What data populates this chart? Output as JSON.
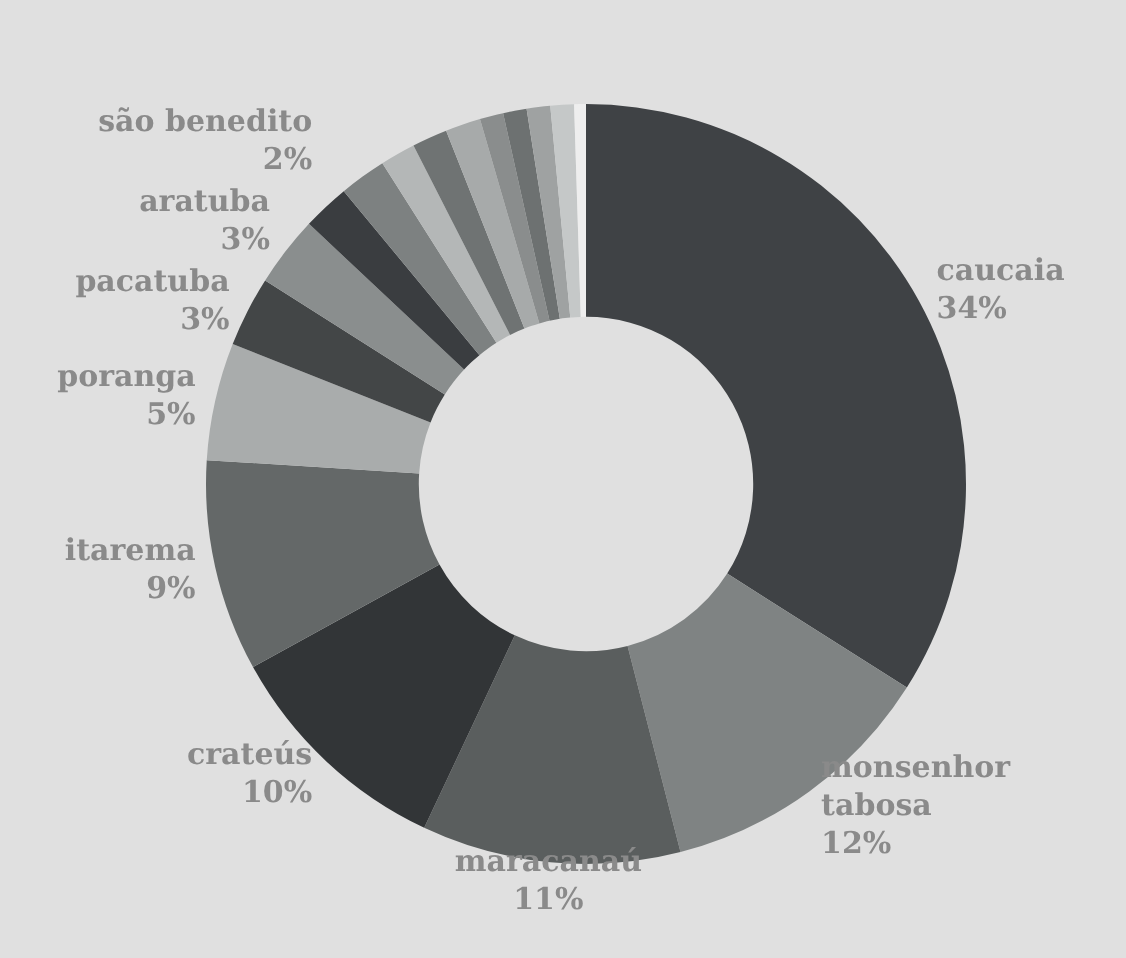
{
  "chart_data": {
    "type": "donut",
    "categories": [
      "caucaia",
      "monsenhor tabosa",
      "maracanaú",
      "crateús",
      "itarema",
      "poranga",
      "pacatuba",
      "aratuba",
      "são benedito",
      null,
      null,
      null,
      null,
      null,
      null,
      null,
      null,
      null
    ],
    "values": [
      34,
      12,
      11,
      10,
      9,
      5,
      3,
      3,
      2,
      2,
      1.5,
      1.5,
      1.5,
      1,
      1,
      1,
      1,
      0.5
    ],
    "value_labels": [
      "34%",
      "12%",
      "11%",
      "10%",
      "9%",
      "5%",
      "3%",
      "3%",
      "2%",
      null,
      null,
      null,
      null,
      null,
      null,
      null,
      null,
      null
    ],
    "colors": [
      "#3f4245",
      "#7f8383",
      "#5a5e5e",
      "#323537",
      "#646868",
      "#a9acac",
      "#434647",
      "#8a8e8e",
      "#3a3d40",
      "#7d8181",
      "#b4b7b7",
      "#6f7373",
      "#a7aaaa",
      "#8a8d8d",
      "#6d7171",
      "#9fa2a2",
      "#c5c8c8",
      "#eeeeee"
    ],
    "legend": false
  }
}
